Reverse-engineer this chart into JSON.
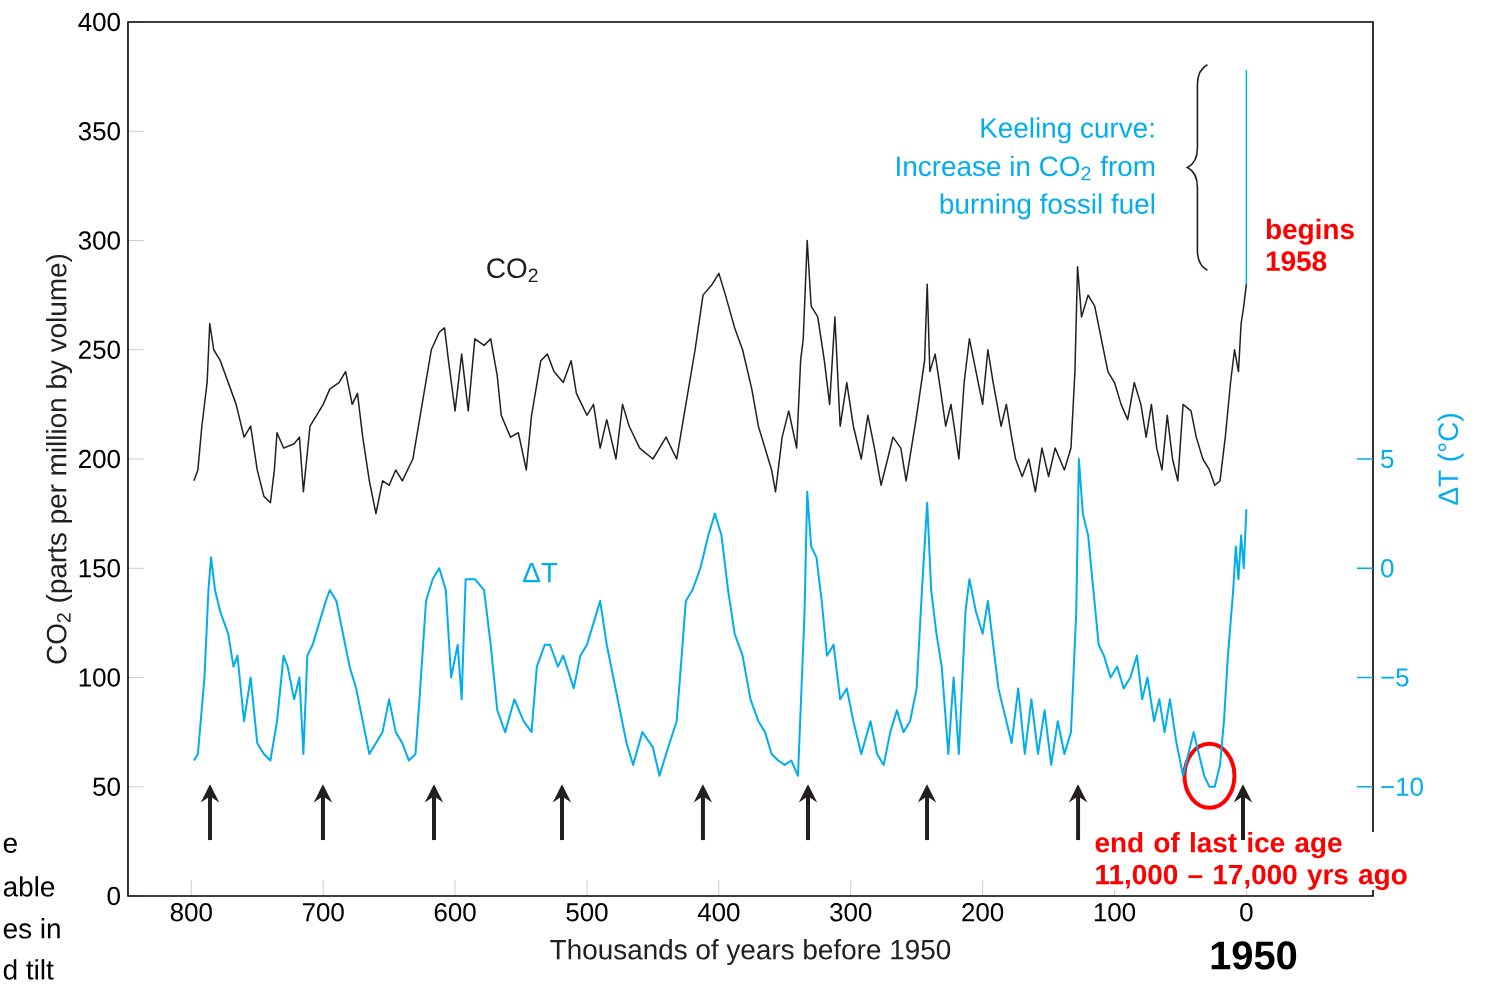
{
  "chart_data": {
    "type": "line",
    "xlabel": "Thousands of years before 1950",
    "ylabel": "CO$_{2}$ (parts per million by volume)",
    "y2label": "ΔT (°C)",
    "xlim": [
      848,
      -96
    ],
    "xticks": [
      800,
      700,
      600,
      500,
      400,
      300,
      200,
      100,
      0
    ],
    "ylim": [
      0,
      400
    ],
    "yticks": [
      0,
      50,
      100,
      150,
      200,
      250,
      300,
      350,
      400
    ],
    "y2lim": [
      -15,
      25
    ],
    "y2ticks": [
      {
        "value": -10,
        "label": "−10"
      },
      {
        "value": -5,
        "label": "−5"
      },
      0,
      5
    ],
    "legend": false,
    "grid": false,
    "series": [
      {
        "name": "CO$_{2}$",
        "color": "#231f20",
        "x": [
          798,
          795,
          792,
          788,
          786,
          783,
          778,
          772,
          766,
          760,
          755,
          750,
          745,
          740,
          737,
          735,
          730,
          722,
          718,
          715,
          710,
          705,
          700,
          695,
          688,
          683,
          678,
          674,
          670,
          665,
          660,
          655,
          650,
          645,
          640,
          632,
          625,
          618,
          612,
          608,
          605,
          600,
          595,
          590,
          585,
          578,
          573,
          568,
          565,
          558,
          552,
          546,
          542,
          535,
          530,
          525,
          518,
          512,
          508,
          504,
          500,
          495,
          490,
          485,
          478,
          473,
          468,
          460,
          450,
          445,
          440,
          432,
          425,
          418,
          412,
          405,
          400,
          395,
          388,
          382,
          375,
          370,
          365,
          360,
          357,
          352,
          347,
          341,
          338,
          336,
          333,
          330,
          325,
          320,
          316,
          312,
          308,
          303,
          298,
          292,
          287,
          282,
          277,
          272,
          268,
          262,
          258,
          254,
          250,
          244,
          242,
          240,
          236,
          232,
          228,
          224,
          218,
          214,
          210,
          205,
          200,
          196,
          192,
          186,
          182,
          178,
          175,
          170,
          165,
          160,
          155,
          150,
          145,
          138,
          133,
          130,
          128,
          125,
          120,
          115,
          110,
          105,
          100,
          95,
          90,
          85,
          80,
          76,
          72,
          68,
          64,
          60,
          56,
          52,
          48,
          42,
          38,
          33,
          28,
          24,
          20,
          16,
          12,
          9,
          6,
          4,
          2,
          0
        ],
        "values": [
          190,
          195,
          215,
          235,
          262,
          250,
          245,
          235,
          225,
          210,
          215,
          195,
          183,
          180,
          195,
          212,
          205,
          207,
          210,
          185,
          215,
          220,
          225,
          232,
          235,
          240,
          225,
          230,
          210,
          190,
          175,
          190,
          188,
          195,
          190,
          200,
          225,
          250,
          258,
          260,
          245,
          222,
          248,
          222,
          255,
          252,
          255,
          238,
          220,
          210,
          212,
          195,
          220,
          245,
          248,
          240,
          235,
          245,
          230,
          225,
          220,
          225,
          205,
          218,
          200,
          225,
          215,
          205,
          200,
          205,
          210,
          200,
          225,
          250,
          275,
          280,
          285,
          275,
          260,
          250,
          232,
          215,
          205,
          195,
          185,
          210,
          222,
          205,
          245,
          255,
          300,
          270,
          265,
          245,
          225,
          265,
          215,
          235,
          215,
          200,
          220,
          205,
          188,
          200,
          210,
          205,
          190,
          205,
          220,
          245,
          280,
          240,
          248,
          232,
          215,
          225,
          200,
          235,
          255,
          240,
          225,
          250,
          235,
          215,
          225,
          210,
          200,
          192,
          200,
          185,
          205,
          192,
          205,
          195,
          205,
          240,
          288,
          265,
          275,
          270,
          255,
          240,
          235,
          225,
          218,
          235,
          225,
          210,
          225,
          205,
          195,
          220,
          200,
          190,
          225,
          222,
          210,
          200,
          195,
          188,
          190,
          210,
          235,
          250,
          240,
          262,
          270,
          280
        ]
      },
      {
        "name": "ΔT",
        "color": "#00aeef",
        "axis": "y2",
        "x": [
          798,
          795,
          790,
          787,
          785,
          782,
          778,
          772,
          768,
          765,
          760,
          755,
          750,
          745,
          740,
          735,
          730,
          727,
          722,
          718,
          715,
          712,
          708,
          703,
          698,
          695,
          690,
          685,
          680,
          675,
          670,
          665,
          660,
          655,
          650,
          645,
          640,
          635,
          630,
          627,
          622,
          617,
          612,
          607,
          603,
          598,
          595,
          592,
          585,
          578,
          573,
          568,
          562,
          555,
          548,
          542,
          538,
          532,
          528,
          522,
          518,
          510,
          505,
          500,
          495,
          490,
          485,
          480,
          475,
          470,
          465,
          458,
          450,
          445,
          440,
          432,
          425,
          420,
          414,
          408,
          403,
          398,
          393,
          388,
          382,
          376,
          370,
          365,
          360,
          355,
          350,
          345,
          340,
          335,
          333,
          330,
          326,
          322,
          318,
          313,
          308,
          303,
          298,
          292,
          285,
          280,
          275,
          270,
          265,
          260,
          255,
          250,
          246,
          242,
          239,
          235,
          231,
          226,
          222,
          218,
          213,
          210,
          205,
          200,
          196,
          192,
          188,
          184,
          178,
          173,
          168,
          163,
          158,
          153,
          148,
          143,
          138,
          133,
          129,
          127,
          124,
          120,
          116,
          112,
          108,
          103,
          98,
          93,
          88,
          83,
          79,
          75,
          70,
          66,
          62,
          58,
          53,
          48,
          44,
          40,
          36,
          32,
          28,
          24,
          20,
          17,
          14,
          12,
          10,
          8,
          6,
          4,
          2,
          0
        ],
        "values": [
          -8.8,
          -8.5,
          -5,
          -1,
          0.5,
          -1,
          -2,
          -3,
          -4.5,
          -4,
          -7,
          -5,
          -8,
          -8.5,
          -8.8,
          -7,
          -4,
          -4.5,
          -6,
          -5,
          -8.5,
          -4,
          -3.5,
          -2.5,
          -1.5,
          -1,
          -1.5,
          -3,
          -4.5,
          -5.5,
          -7,
          -8.5,
          -8,
          -7.5,
          -6,
          -7.5,
          -8,
          -8.8,
          -8.5,
          -6,
          -1.5,
          -0.5,
          0,
          -1,
          -5,
          -3.5,
          -6,
          -0.5,
          -0.5,
          -1,
          -3.5,
          -6.5,
          -7.5,
          -6,
          -7,
          -7.5,
          -4.5,
          -3.5,
          -3.5,
          -4.5,
          -4,
          -5.5,
          -4,
          -3.5,
          -2.5,
          -1.5,
          -3.5,
          -5,
          -6.5,
          -8,
          -9,
          -7.5,
          -8.2,
          -9.5,
          -8.5,
          -7,
          -1.5,
          -1,
          0,
          1.5,
          2.5,
          1.5,
          -1,
          -3,
          -4,
          -6,
          -7,
          -7.5,
          -8.5,
          -8.8,
          -9,
          -8.8,
          -9.5,
          -2,
          3.5,
          1,
          0.5,
          -1.5,
          -4,
          -3.5,
          -6,
          -5.5,
          -7,
          -8.5,
          -7,
          -8.5,
          -9,
          -7.5,
          -6.5,
          -7.5,
          -7,
          -5.5,
          -1,
          3,
          -1,
          -3,
          -4.5,
          -8.5,
          -5,
          -8.5,
          -2,
          -0.5,
          -2,
          -3,
          -1.5,
          -3.5,
          -5.5,
          -6.5,
          -8,
          -5.5,
          -8.5,
          -6,
          -8.5,
          -6.5,
          -9,
          -7,
          -8.5,
          -7.5,
          -2,
          5,
          2.5,
          1.5,
          -1,
          -3.5,
          -4,
          -5,
          -4.5,
          -5.5,
          -5,
          -4,
          -6,
          -5,
          -7,
          -6,
          -7.5,
          -6,
          -8,
          -9.5,
          -8.5,
          -7.5,
          -8.5,
          -9.5,
          -10,
          -10,
          -9,
          -7,
          -4,
          -2.5,
          -1,
          1,
          -0.5,
          1.5,
          0,
          2.7
        ]
      },
      {
        "color": "#00aeef",
        "x": [
          0,
          0
        ],
        "values": [
          280,
          378
        ]
      }
    ],
    "annotations": [
      "Keeling curve:",
      "Increase in CO$_{2}$ from",
      "burning fossil fuel",
      "begins 1958",
      {
        "text": "end of last ice age 11,000 – 17,000 yrs ago",
        "x": 28,
        "y": 55
      },
      "1950",
      "e",
      "able",
      "es in",
      "d tilt"
    ]
  }
}
